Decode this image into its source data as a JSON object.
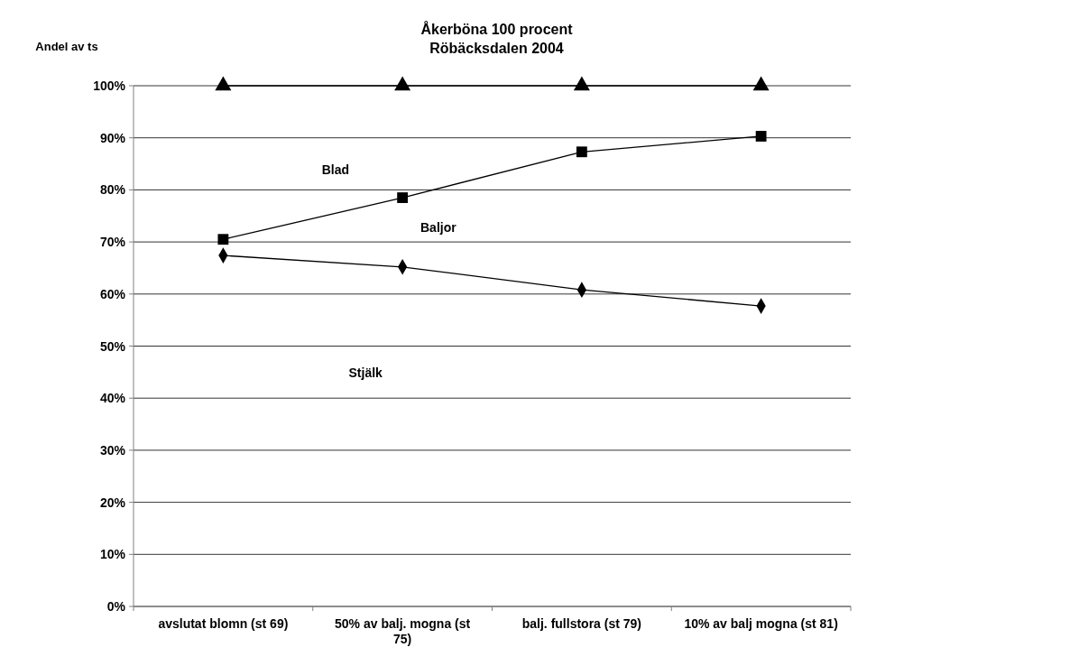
{
  "chart_data": {
    "type": "line",
    "title": "Åkerböna 100 procent\nRöbäcksdalen  2004",
    "ylabel": "Andel av ts",
    "categories": [
      "avslutat blomn (st 69)",
      "50% av balj. mogna (st 75)",
      "balj. fullstora (st 79)",
      "10% av balj mogna (st 81)"
    ],
    "series": [
      {
        "color": "#000000",
        "marker": "triangle",
        "values": [
          100,
          100,
          100,
          100
        ]
      },
      {
        "color": "#000000",
        "marker": "square",
        "values": [
          70.5,
          78.5,
          87.3,
          90.3
        ]
      },
      {
        "color": "#000000",
        "marker": "diamond",
        "values": [
          67.4,
          65.2,
          60.8,
          57.7
        ]
      }
    ],
    "annotations": [
      "Blad",
      "Baljor",
      "Stjälk"
    ],
    "ylim": [
      0,
      100
    ],
    "yticks": [
      {
        "value": 0,
        "label": "0%"
      },
      {
        "value": 10,
        "label": "10%"
      },
      {
        "value": 20,
        "label": "20%"
      },
      {
        "value": 30,
        "label": "30%"
      },
      {
        "value": 40,
        "label": "40%"
      },
      {
        "value": 50,
        "label": "50%"
      },
      {
        "value": 60,
        "label": "60%"
      },
      {
        "value": 70,
        "label": "70%"
      },
      {
        "value": 80,
        "label": "80%"
      },
      {
        "value": 90,
        "label": "90%"
      },
      {
        "value": 100,
        "label": "100%"
      }
    ],
    "grid": "y",
    "line_style": "solid"
  }
}
